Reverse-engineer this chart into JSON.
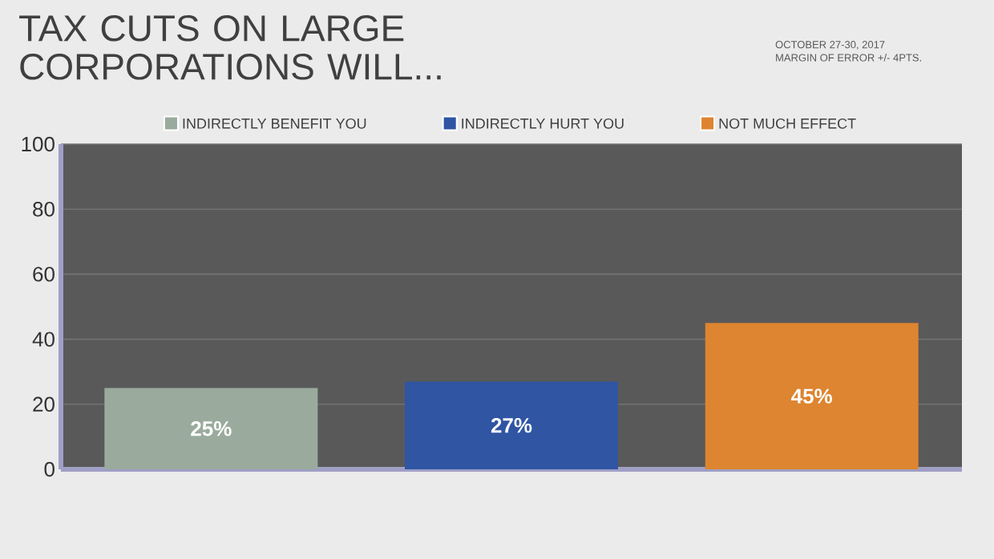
{
  "chart_data": {
    "type": "bar",
    "title": "TAX CUTS ON LARGE CORPORATIONS WILL...",
    "annotations": [
      "OCTOBER 27-30, 2017",
      "MARGIN OF ERROR +/- 4PTS."
    ],
    "categories": [
      null,
      null,
      null
    ],
    "series": [
      {
        "name": "INDIRECTLY BENEFIT YOU",
        "color": "#9aab9d",
        "values": [
          25,
          null,
          null
        ],
        "value_labels": [
          "25%",
          null,
          null
        ]
      },
      {
        "name": "INDIRECTLY HURT YOU",
        "color": "#2f55a3",
        "values": [
          null,
          27,
          null
        ],
        "value_labels": [
          null,
          "27%",
          null
        ]
      },
      {
        "name": "NOT MUCH EFFECT",
        "color": "#dd8530",
        "values": [
          null,
          null,
          45
        ],
        "value_labels": [
          null,
          null,
          "45%"
        ]
      }
    ],
    "ylim": [
      0,
      100
    ],
    "yticks": [
      0,
      20,
      40,
      60,
      80,
      100
    ],
    "grid": "y",
    "legend": "top"
  }
}
